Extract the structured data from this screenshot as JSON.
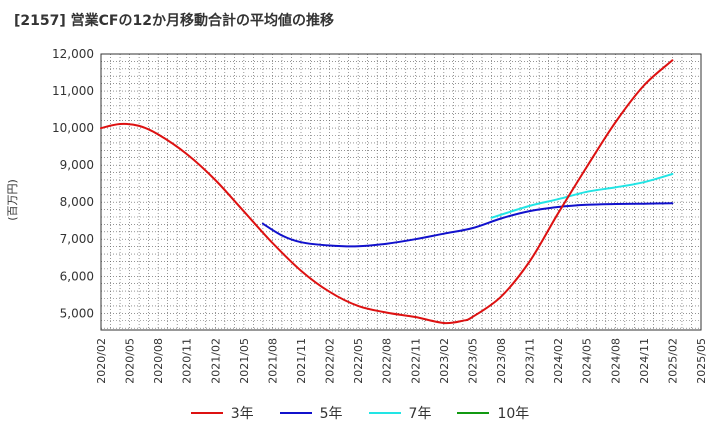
{
  "chart_data": {
    "type": "line",
    "title": "[2157]  営業CFの12か月移動合計の平均値の推移",
    "ylabel": "(百万円)",
    "xlabel": "",
    "ylim": [
      4550,
      12000
    ],
    "yticks": [
      5000,
      6000,
      7000,
      8000,
      9000,
      10000,
      11000,
      12000
    ],
    "yticklabels": [
      "5,000",
      "6,000",
      "7,000",
      "8,000",
      "9,000",
      "10,000",
      "11,000",
      "12,000"
    ],
    "xticklabels": [
      "2020/02",
      "2020/05",
      "2020/08",
      "2020/11",
      "2021/02",
      "2021/05",
      "2021/08",
      "2021/11",
      "2022/02",
      "2022/05",
      "2022/08",
      "2022/11",
      "2023/02",
      "2023/05",
      "2023/08",
      "2023/11",
      "2024/02",
      "2024/05",
      "2024/08",
      "2024/11",
      "2025/02",
      "2025/05"
    ],
    "grid": true,
    "legend_position": "bottom",
    "series": [
      {
        "name": "3年",
        "color": "#dd1111",
        "points": [
          [
            "2020/02",
            10000
          ],
          [
            "2020/04",
            10110
          ],
          [
            "2020/06",
            10060
          ],
          [
            "2020/08",
            9830
          ],
          [
            "2020/11",
            9300
          ],
          [
            "2021/02",
            8600
          ],
          [
            "2021/05",
            7750
          ],
          [
            "2021/08",
            6900
          ],
          [
            "2021/11",
            6150
          ],
          [
            "2022/02",
            5580
          ],
          [
            "2022/05",
            5200
          ],
          [
            "2022/08",
            5020
          ],
          [
            "2022/11",
            4900
          ],
          [
            "2023/02",
            4740
          ],
          [
            "2023/04",
            4800
          ],
          [
            "2023/05",
            4900
          ],
          [
            "2023/08",
            5450
          ],
          [
            "2023/11",
            6400
          ],
          [
            "2024/02",
            7700
          ],
          [
            "2024/05",
            8950
          ],
          [
            "2024/08",
            10150
          ],
          [
            "2024/11",
            11150
          ],
          [
            "2025/02",
            11830
          ]
        ]
      },
      {
        "name": "5年",
        "color": "#1111cc",
        "points": [
          [
            "2021/07",
            7420
          ],
          [
            "2021/09",
            7100
          ],
          [
            "2021/11",
            6920
          ],
          [
            "2022/02",
            6830
          ],
          [
            "2022/05",
            6810
          ],
          [
            "2022/08",
            6880
          ],
          [
            "2022/11",
            7000
          ],
          [
            "2023/02",
            7150
          ],
          [
            "2023/05",
            7300
          ],
          [
            "2023/08",
            7560
          ],
          [
            "2023/11",
            7760
          ],
          [
            "2024/02",
            7870
          ],
          [
            "2024/05",
            7930
          ],
          [
            "2024/08",
            7950
          ],
          [
            "2024/11",
            7960
          ],
          [
            "2025/02",
            7970
          ]
        ]
      },
      {
        "name": "7年",
        "color": "#22e5e5",
        "points": [
          [
            "2023/07",
            7580
          ],
          [
            "2023/11",
            7900
          ],
          [
            "2024/02",
            8080
          ],
          [
            "2024/05",
            8280
          ],
          [
            "2024/08",
            8400
          ],
          [
            "2024/11",
            8540
          ],
          [
            "2025/02",
            8760
          ]
        ]
      },
      {
        "name": "10年",
        "color": "#119911",
        "points": []
      }
    ]
  }
}
